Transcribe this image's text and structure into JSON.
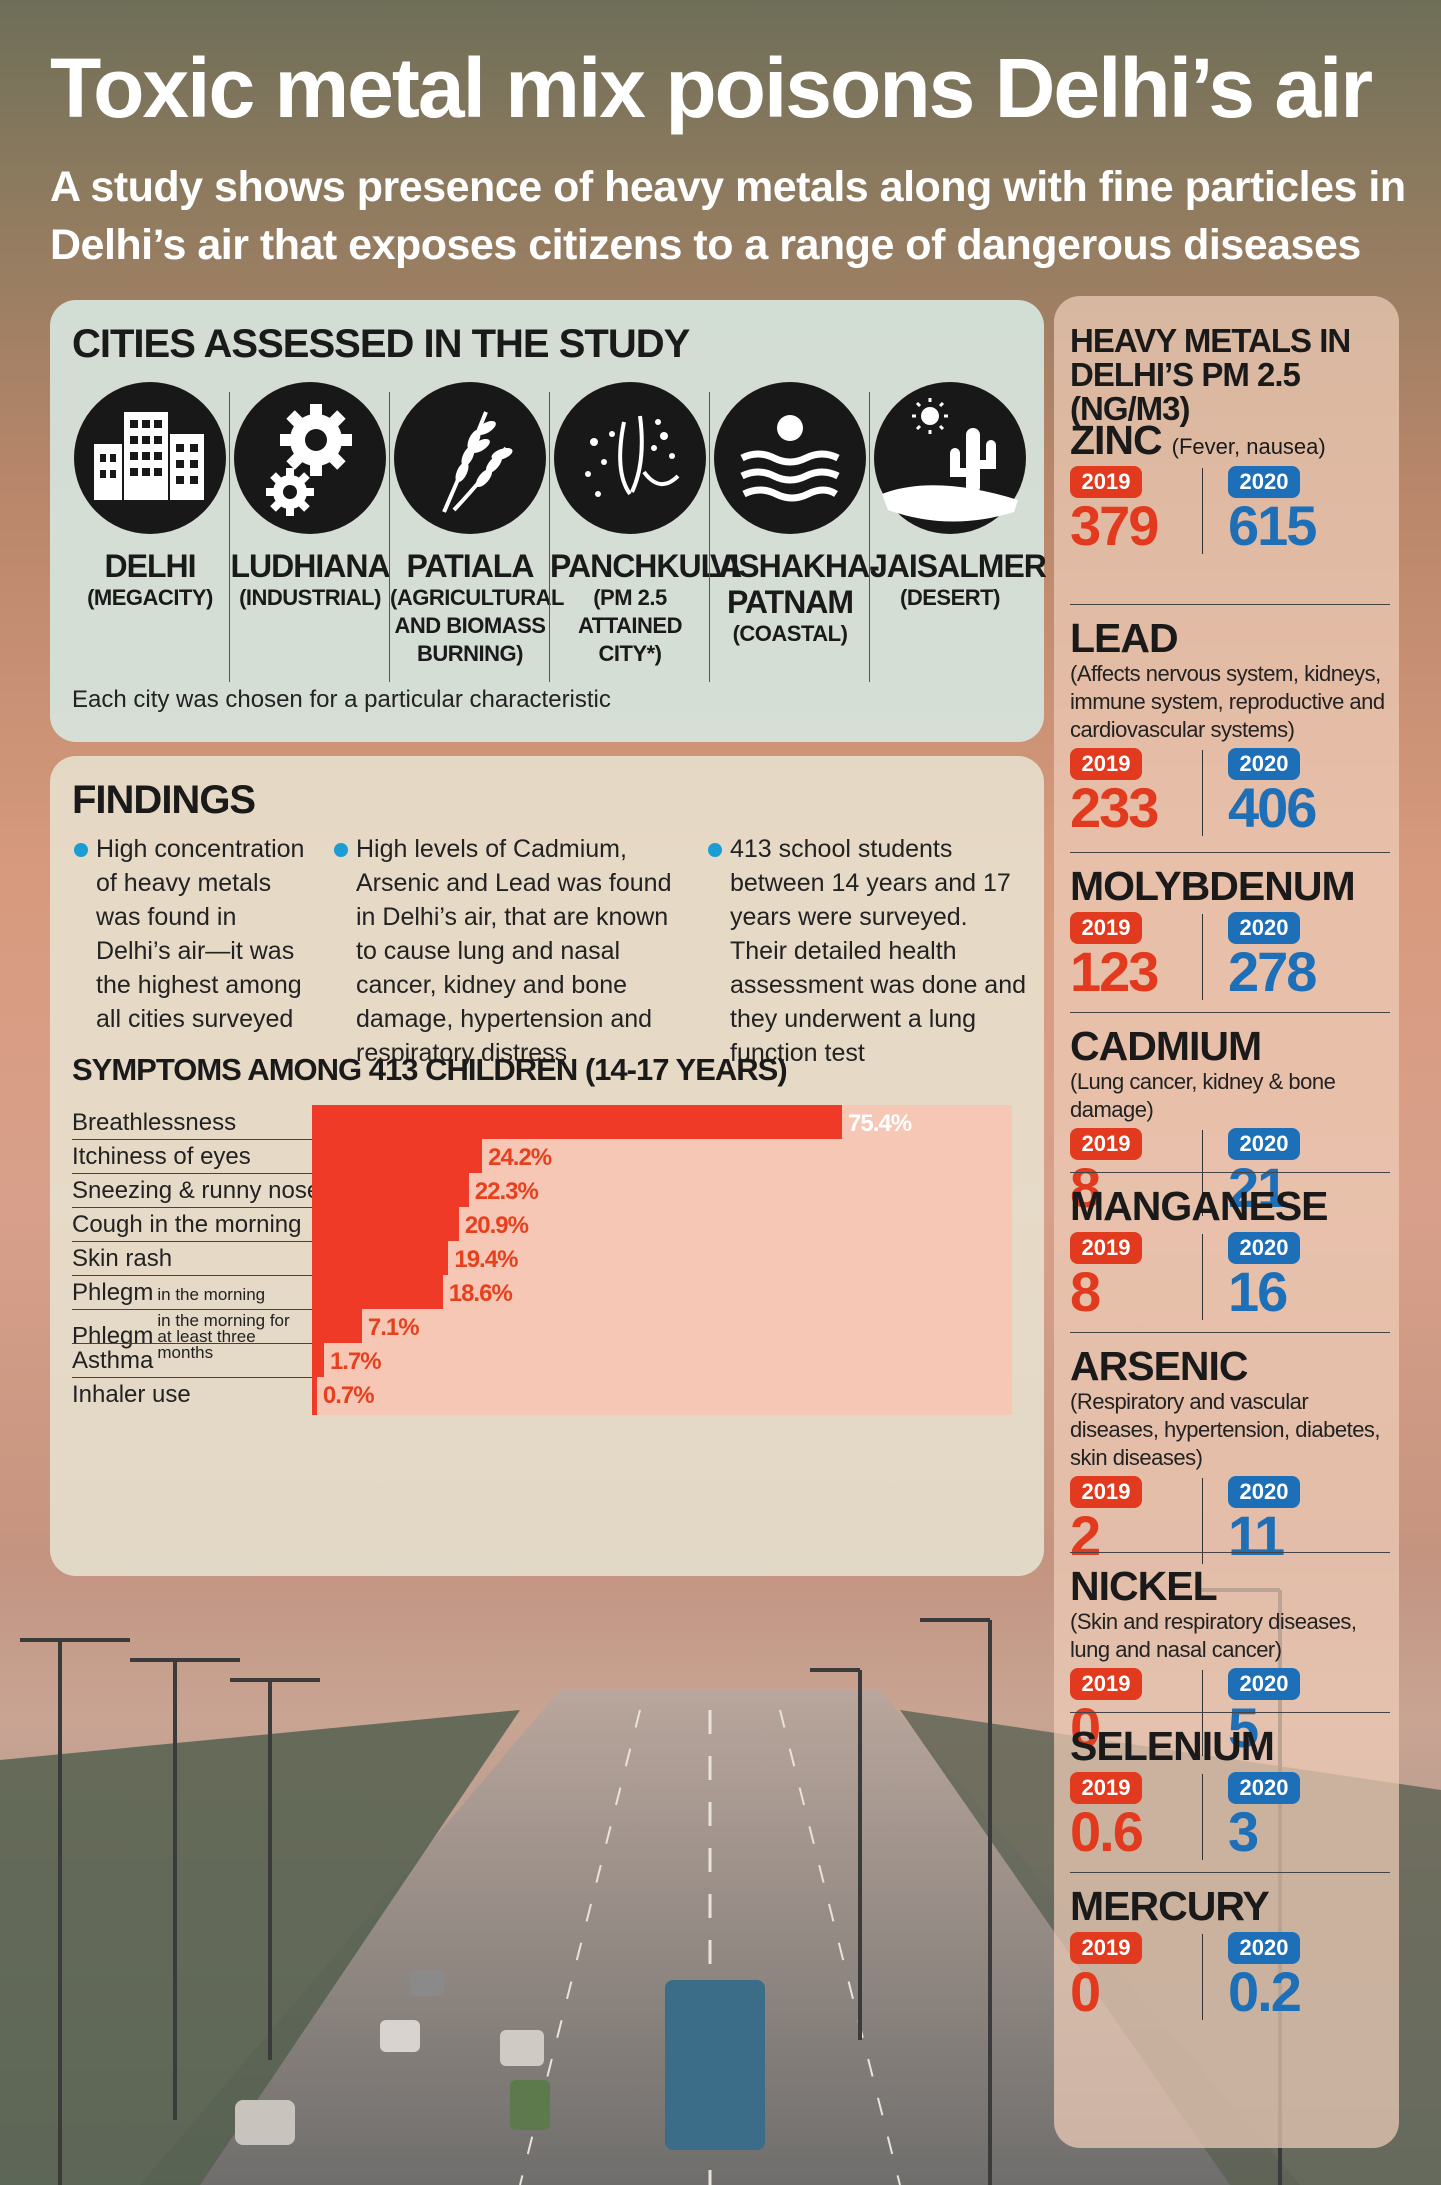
{
  "title": "Toxic metal mix poisons Delhi’s air",
  "subtitle": "A study shows presence of heavy metals along with fine particles in Delhi’s air that exposes citizens to a range of dangerous diseases",
  "cities_panel": {
    "heading": "CITIES ASSESSED IN THE STUDY",
    "cities": [
      {
        "name": "DELHI",
        "type": "(MEGACITY)",
        "icon": "buildings-icon"
      },
      {
        "name": "LUDHIANA",
        "type": "(INDUSTRIAL)",
        "icon": "gears-icon"
      },
      {
        "name": "PATIALA",
        "type": "(AGRICULTURAL AND BIOMASS BURNING)",
        "icon": "wheat-icon"
      },
      {
        "name": "PANCHKULA",
        "type": "(PM 2.5 ATTAINED CITY*)",
        "icon": "particles-icon"
      },
      {
        "name": "VISHAKHA-PATNAM",
        "type": "(COASTAL)",
        "icon": "sea-sun-icon"
      },
      {
        "name": "JAISALMER",
        "type": "(DESERT)",
        "icon": "cactus-sun-icon"
      }
    ],
    "note": "Each city was chosen for a particular characteristic"
  },
  "findings": {
    "heading": "FINDINGS",
    "bullets": [
      "High concentration of heavy metals was found in Delhi’s air—it was the highest among all cities surveyed",
      "High levels of Cadmium, Arsenic and Lead was found in Delhi’s air, that are known to cause lung and nasal cancer, kidney and bone damage, hypertension and respiratory distress",
      "413 school students between 14 years and 17 years were surveyed. Their detailed health assessment was done and they underwent a lung function test"
    ]
  },
  "chart_data": [
    {
      "type": "bar",
      "orientation": "horizontal",
      "title": "SYMPTOMS AMONG 413 CHILDREN (14-17 YEARS)",
      "unit": "%",
      "categories": [
        "Breathlessness",
        "Itchiness of eyes",
        "Sneezing & runny nose",
        "Cough in the morning",
        "Skin rash",
        "Phlegm in the morning",
        "Phlegm in the morning for at least three months",
        "Asthma",
        "Inhaler use"
      ],
      "values": [
        75.4,
        24.2,
        22.3,
        20.9,
        19.4,
        18.6,
        7.1,
        1.7,
        0.7
      ],
      "labels": [
        "75.4%",
        "24.2%",
        "22.3%",
        "20.9%",
        "19.4%",
        "18.6%",
        "7.1%",
        "1.7%",
        "0.7%"
      ],
      "label_parts": [
        [
          "Breathlessness",
          ""
        ],
        [
          "Itchiness of eyes",
          ""
        ],
        [
          "Sneezing & runny nose",
          ""
        ],
        [
          "Cough in the morning",
          ""
        ],
        [
          "Skin rash",
          ""
        ],
        [
          "Phlegm",
          "in the morning"
        ],
        [
          "Phlegm",
          "in the morning for at least three months"
        ],
        [
          "Asthma",
          ""
        ],
        [
          "Inhaler use",
          ""
        ]
      ],
      "xlim": [
        0,
        100
      ],
      "colors": {
        "bar": "#ee3a27",
        "track": "#f6c7b4"
      }
    },
    {
      "type": "table",
      "title": "HEAVY METALS IN DELHI’S PM 2.5 (NG/M3)",
      "columns": [
        "2019",
        "2020"
      ],
      "rows": [
        {
          "metal": "ZINC",
          "note": "(Fever, nausea)",
          "desc": "",
          "v2019": "379",
          "v2020": "615"
        },
        {
          "metal": "LEAD",
          "note": "",
          "desc": "(Affects nervous system, kidneys, immune system, reproductive and cardiovascular systems)",
          "v2019": "233",
          "v2020": "406"
        },
        {
          "metal": "MOLYBDENUM",
          "note": "",
          "desc": "",
          "v2019": "123",
          "v2020": "278"
        },
        {
          "metal": "CADMIUM",
          "note": "",
          "desc": "(Lung cancer, kidney & bone damage)",
          "v2019": "8",
          "v2020": "21"
        },
        {
          "metal": "MANGANESE",
          "note": "",
          "desc": "",
          "v2019": "8",
          "v2020": "16"
        },
        {
          "metal": "ARSENIC",
          "note": "",
          "desc": "(Respiratory and vascular diseases, hypertension, diabetes, skin diseases)",
          "v2019": "2",
          "v2020": "11"
        },
        {
          "metal": "NICKEL",
          "note": "",
          "desc": "(Skin and respiratory diseases, lung and nasal cancer)",
          "v2019": "0",
          "v2020": "5"
        },
        {
          "metal": "SELENIUM",
          "note": "",
          "desc": "",
          "v2019": "0.6",
          "v2020": "3"
        },
        {
          "metal": "MERCURY",
          "note": "",
          "desc": "",
          "v2019": "0",
          "v2020": "0.2"
        }
      ],
      "colors": {
        "2019": "#e23a1e",
        "2020": "#1d6fb8"
      }
    }
  ]
}
